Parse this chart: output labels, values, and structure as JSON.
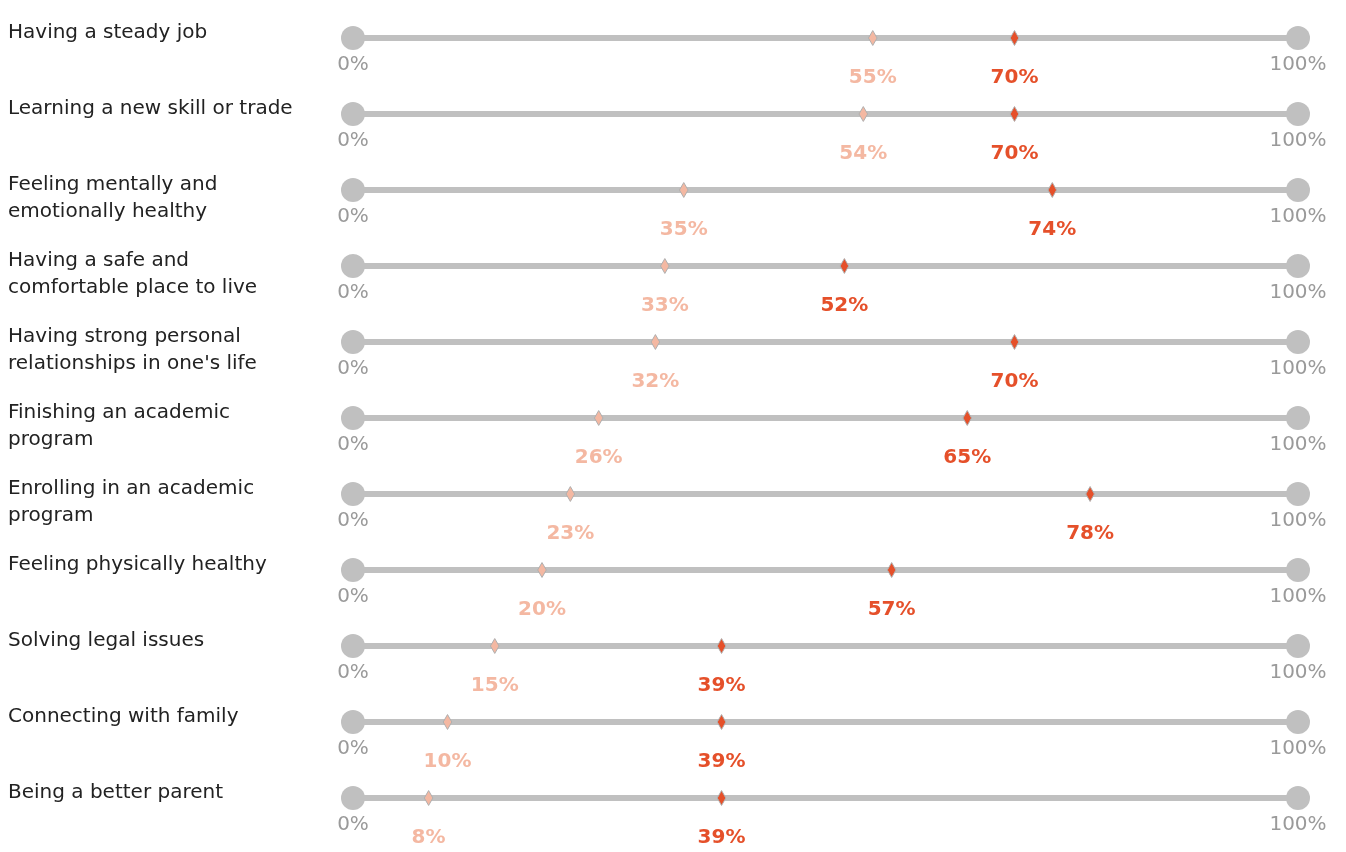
{
  "chart_data": {
    "type": "scatter",
    "orientation": "horizontal",
    "marker": "diamond",
    "categories": [
      "Having a steady job",
      "Learning a new skill or trade",
      "Feeling mentally and emotionally healthy",
      "Having a safe and comfortable place to live",
      "Having strong personal relationships in one's life",
      "Finishing an academic program",
      "Enrolling in an academic program",
      "Feeling physically healthy",
      "Solving legal issues",
      "Connecting with family",
      "Being a better parent"
    ],
    "series": [
      {
        "color": "#f4b8a2",
        "values": [
          55,
          54,
          35,
          33,
          32,
          26,
          23,
          20,
          15,
          10,
          8
        ],
        "value_labels": [
          "55%",
          "54%",
          "35%",
          "33%",
          "32%",
          "26%",
          "23%",
          "20%",
          "15%",
          "10%",
          "8%"
        ]
      },
      {
        "color": "#e5502a",
        "values": [
          70,
          70,
          74,
          52,
          70,
          65,
          78,
          57,
          39,
          39,
          39
        ],
        "value_labels": [
          "70%",
          "70%",
          "74%",
          "52%",
          "70%",
          "65%",
          "78%",
          "57%",
          "39%",
          "39%",
          "39%"
        ]
      }
    ],
    "xlim": [
      0,
      100
    ],
    "xticks": [
      {
        "value": 0,
        "label": "0%"
      },
      {
        "value": 100,
        "label": "100%"
      }
    ],
    "grid": false
  }
}
